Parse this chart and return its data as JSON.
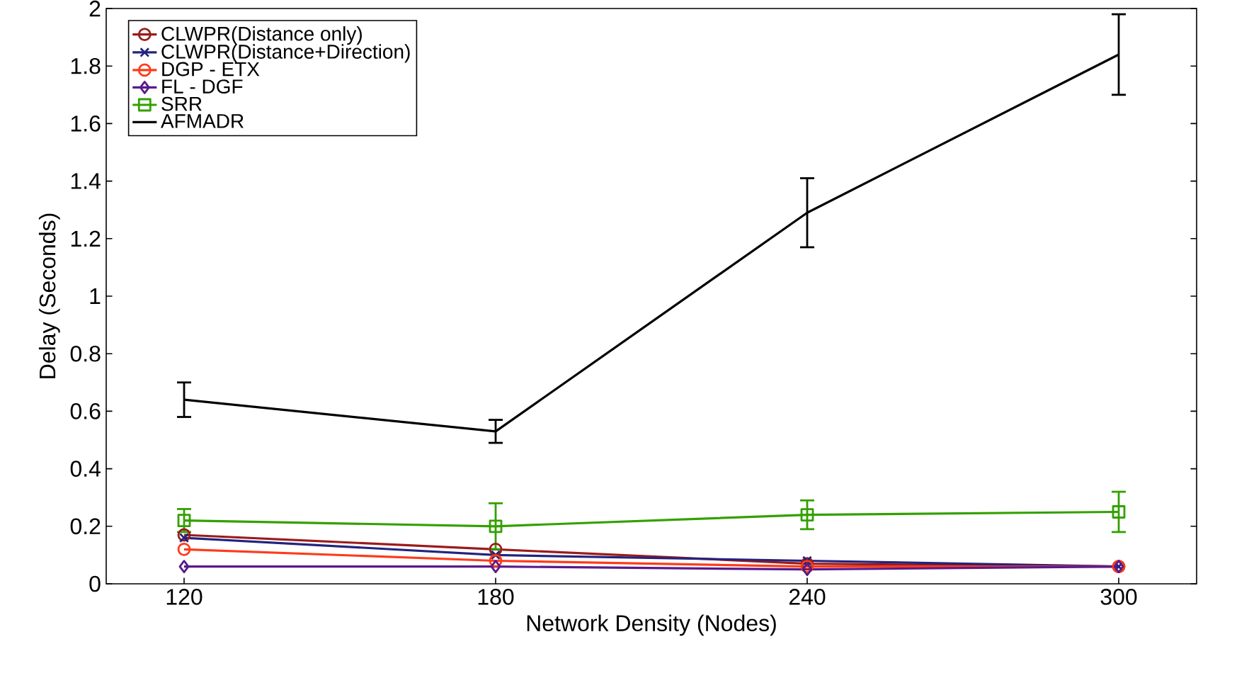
{
  "chart_data": {
    "type": "line",
    "xlabel": "Network Density (Nodes)",
    "ylabel": "Delay (Seconds)",
    "x": [
      120,
      180,
      240,
      300
    ],
    "xlim": [
      105,
      315
    ],
    "xticks": [
      120,
      180,
      240,
      300
    ],
    "ylim": [
      0,
      2
    ],
    "yticks": [
      0,
      0.2,
      0.4,
      0.6,
      0.8,
      1,
      1.2,
      1.4,
      1.6,
      1.8,
      2
    ],
    "grid": false,
    "legend": "top left",
    "series": [
      {
        "name": "CLWPR(Distance only)",
        "color": "#9b1b1b",
        "marker": "circle",
        "values": [
          0.17,
          0.12,
          0.07,
          0.06
        ]
      },
      {
        "name": "CLWPR(Distance+Direction)",
        "color": "#23237e",
        "marker": "cross",
        "values": [
          0.16,
          0.1,
          0.08,
          0.06
        ]
      },
      {
        "name": "DGP - ETX",
        "color": "#ff3a1a",
        "marker": "circle",
        "values": [
          0.12,
          0.08,
          0.06,
          0.06
        ]
      },
      {
        "name": "FL - DGF",
        "color": "#5a1a8a",
        "marker": "diamond",
        "values": [
          0.06,
          0.06,
          0.05,
          0.06
        ]
      },
      {
        "name": "SRR",
        "color": "#33a000",
        "marker": "square",
        "values": [
          0.22,
          0.2,
          0.24,
          0.25
        ],
        "errors": [
          0.04,
          0.08,
          0.05,
          0.07
        ]
      },
      {
        "name": "AFMADR",
        "color": "#000000",
        "marker": "none",
        "values": [
          0.64,
          0.53,
          1.29,
          1.84
        ],
        "errors": [
          0.06,
          0.04,
          0.12,
          0.14
        ]
      }
    ]
  }
}
